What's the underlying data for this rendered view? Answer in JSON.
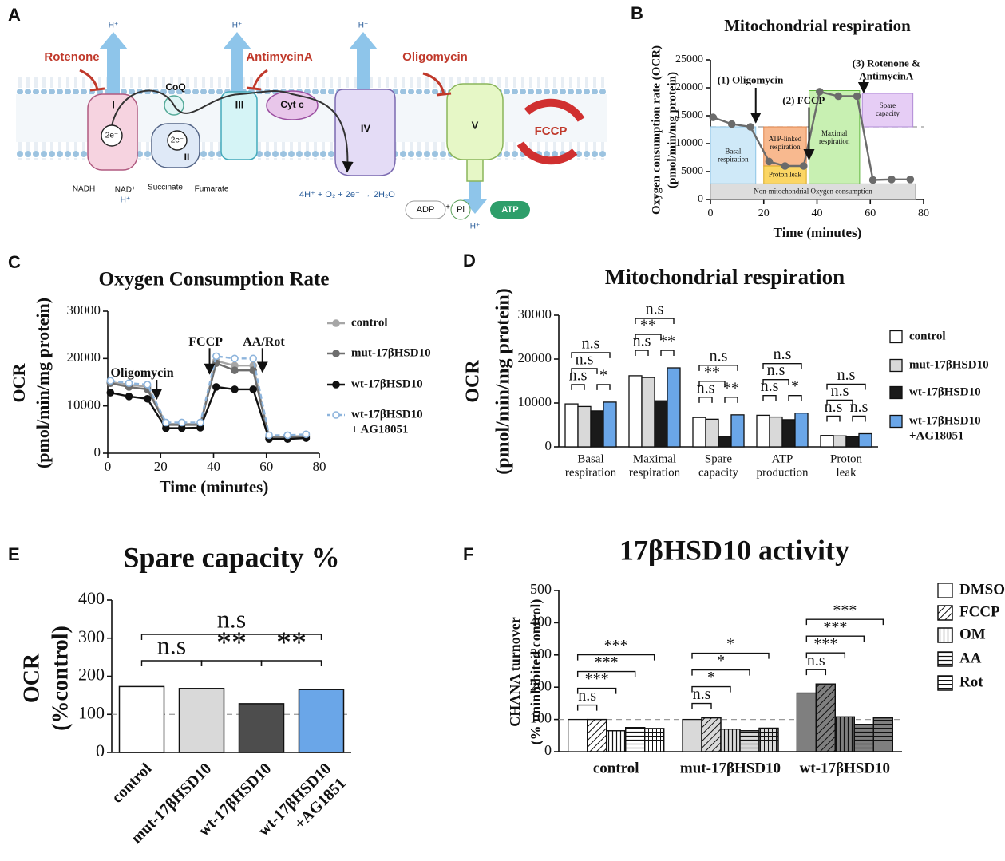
{
  "panels": [
    "A",
    "B",
    "C",
    "D",
    "E",
    "F"
  ],
  "diagram": {
    "inhibitors": [
      "Rotenone",
      "AntimycinA",
      "Oligomycin"
    ],
    "proton": "H⁺",
    "electron": "2e⁻",
    "complexes": [
      "I",
      "II",
      "III",
      "IV",
      "V"
    ],
    "coq": "CoQ",
    "cytc": "Cyt c",
    "substrates": [
      "NADH",
      "NAD⁺",
      "Succinate",
      "Fumarate"
    ],
    "reaction": "4H⁺ + O₂ + 2e⁻ → 2H₂O",
    "adp": "ADP",
    "plus": "+",
    "pi": "Pi",
    "atp": "ATP",
    "uncoupler": "FCCP"
  },
  "chart_data": [
    {
      "type": "line",
      "title": "Mitochondrial respiration",
      "ylabel": [
        "Oxygen consumption rate (OCR)",
        "(pmol/min/mg protein)"
      ],
      "xlabel": "Time (minutes)",
      "x": [
        1,
        8,
        15,
        22,
        28,
        35,
        41,
        48,
        55,
        61,
        68,
        75
      ],
      "series": [
        {
          "color": "#6b6b6b",
          "values": [
            14700,
            13500,
            13000,
            6800,
            6000,
            6000,
            19300,
            18500,
            18500,
            3500,
            3600,
            3600
          ]
        }
      ],
      "xlim": [
        0,
        80
      ],
      "xticks": [
        0,
        20,
        40,
        60,
        80
      ],
      "ylim": [
        0,
        25000
      ],
      "yticks": [
        0,
        5000,
        10000,
        15000,
        20000,
        25000
      ],
      "reference_line": 13000,
      "regions": [
        [
          "Basal",
          "respiration"
        ],
        [
          "ATP-linked",
          "respiration"
        ],
        "Proton leak",
        [
          "Maximal",
          "respiration"
        ],
        [
          "Spare",
          "capacity"
        ],
        "Non-mitochondrial Oxygen consumption"
      ],
      "annotations": [
        "(1) Oligomycin",
        "(2) FCCP",
        [
          "(3) Rotenone &",
          "AntimycinA"
        ]
      ]
    },
    {
      "type": "line",
      "title": "Oxygen Consumption Rate",
      "ylabel": [
        "OCR",
        "(pmol/min/mg protein)"
      ],
      "xlabel": "Time (minutes)",
      "x": [
        1,
        8,
        15,
        22,
        28,
        35,
        41,
        48,
        55,
        61,
        68,
        75
      ],
      "series": [
        {
          "name": "control",
          "color": "#a6a6a6",
          "values": [
            15000,
            14500,
            14000,
            6200,
            6200,
            6200,
            19500,
            18500,
            18500,
            3500,
            3500,
            3700
          ]
        },
        {
          "name": "mut-17βHSD10",
          "color": "#6e6e6e",
          "values": [
            14800,
            14000,
            13500,
            6000,
            6000,
            6000,
            19000,
            17500,
            17500,
            3300,
            3300,
            3500
          ]
        },
        {
          "name": "wt-17βHSD10",
          "color": "#111111",
          "values": [
            12800,
            12000,
            11500,
            5300,
            5300,
            5400,
            14000,
            13500,
            13500,
            3000,
            3000,
            3200
          ]
        },
        {
          "name": [
            "wt-17βHSD10",
            "+ AG18051"
          ],
          "color": "#8db4dc",
          "line_style": "dashed",
          "marker_fill": "none",
          "values": [
            15300,
            14800,
            14500,
            6500,
            6500,
            6500,
            20500,
            20000,
            20000,
            3800,
            3800,
            4000
          ]
        }
      ],
      "xlim": [
        0,
        80
      ],
      "xticks": [
        0,
        20,
        40,
        60,
        80
      ],
      "ylim": [
        0,
        30000
      ],
      "yticks": [
        0,
        10000,
        20000,
        30000
      ],
      "annotations": [
        "Oligomycin",
        "FCCP",
        "AA/Rot"
      ]
    },
    {
      "type": "bar",
      "title": "Mitochondrial respiration",
      "ylabel": [
        "OCR",
        "(pmol/min/mg protein)"
      ],
      "categories": [
        [
          "Basal",
          "respiration"
        ],
        [
          "Maximal",
          "respiration"
        ],
        [
          "Spare",
          "capacity"
        ],
        [
          "ATP",
          "production"
        ],
        [
          "Proton",
          "leak"
        ]
      ],
      "series": [
        {
          "name": "control",
          "color": "#ffffff",
          "values": [
            9800,
            16200,
            6700,
            7200,
            2600
          ]
        },
        {
          "name": "mut-17βHSD10",
          "color": "#d9d9d9",
          "values": [
            9200,
            15800,
            6300,
            6800,
            2500
          ]
        },
        {
          "name": "wt-17βHSD10",
          "color": "#1a1a1a",
          "values": [
            8200,
            10500,
            2400,
            6200,
            2300
          ]
        },
        {
          "name": [
            "wt-17βHSD10",
            "+AG18051"
          ],
          "color": "#6aa6e8",
          "values": [
            10200,
            18000,
            7300,
            7700,
            3000
          ]
        }
      ],
      "ylim": [
        0,
        30000
      ],
      "yticks": [
        0,
        10000,
        20000,
        30000
      ],
      "annotations": [
        [
          "n.s",
          "n.s",
          "n.s",
          "*"
        ],
        [
          "n.s",
          "**",
          "n.s",
          "**"
        ],
        [
          "n.s",
          "**",
          "n.s",
          "**"
        ],
        [
          "n.s",
          "n.s",
          "n.s",
          "*"
        ],
        [
          "n.s",
          "n.s",
          "n.s",
          "n.s"
        ]
      ]
    },
    {
      "type": "bar",
      "title": "Spare capacity %",
      "ylabel": [
        "OCR",
        "(%control)"
      ],
      "categories": [
        "control",
        "mut-17βHSD10",
        "wt-17βHSD10",
        [
          "wt-17βHSD10",
          "+AG1851"
        ]
      ],
      "values": [
        173,
        168,
        128,
        165
      ],
      "colors": [
        "#ffffff",
        "#d9d9d9",
        "#4d4d4d",
        "#6aa6e8"
      ],
      "ylim": [
        0,
        400
      ],
      "yticks": [
        0,
        100,
        200,
        300,
        400
      ],
      "reference_line": 100,
      "annotations": [
        "n.s",
        "n.s",
        "**",
        "**"
      ]
    },
    {
      "type": "bar",
      "title": "17βHSD10 activity",
      "ylabel": [
        "CHANA turnover",
        "(% uninhibited control)"
      ],
      "categories": [
        "control",
        "mut-17βHSD10",
        "wt-17βHSD10"
      ],
      "category_colors": [
        "#ffffff",
        "#d9d9d9",
        "#7f7f7f"
      ],
      "series": [
        {
          "name": "DMSO",
          "pattern": "none",
          "values": [
            100,
            100,
            182
          ]
        },
        {
          "name": "FCCP",
          "pattern": "diagonal",
          "values": [
            100,
            105,
            210
          ]
        },
        {
          "name": "OM",
          "pattern": "vertical",
          "values": [
            65,
            70,
            108
          ]
        },
        {
          "name": "AA",
          "pattern": "horizontal",
          "values": [
            75,
            65,
            85
          ]
        },
        {
          "name": "Rot",
          "pattern": "grid",
          "values": [
            72,
            73,
            105
          ]
        }
      ],
      "ylim": [
        0,
        500
      ],
      "yticks": [
        0,
        100,
        200,
        300,
        400,
        500
      ],
      "reference_line": 100,
      "annotations": [
        [
          "n.s",
          "***",
          "***",
          "***"
        ],
        [
          "n.s",
          "*",
          "*",
          "*"
        ],
        [
          "n.s",
          "***",
          "***",
          "***"
        ]
      ]
    }
  ]
}
